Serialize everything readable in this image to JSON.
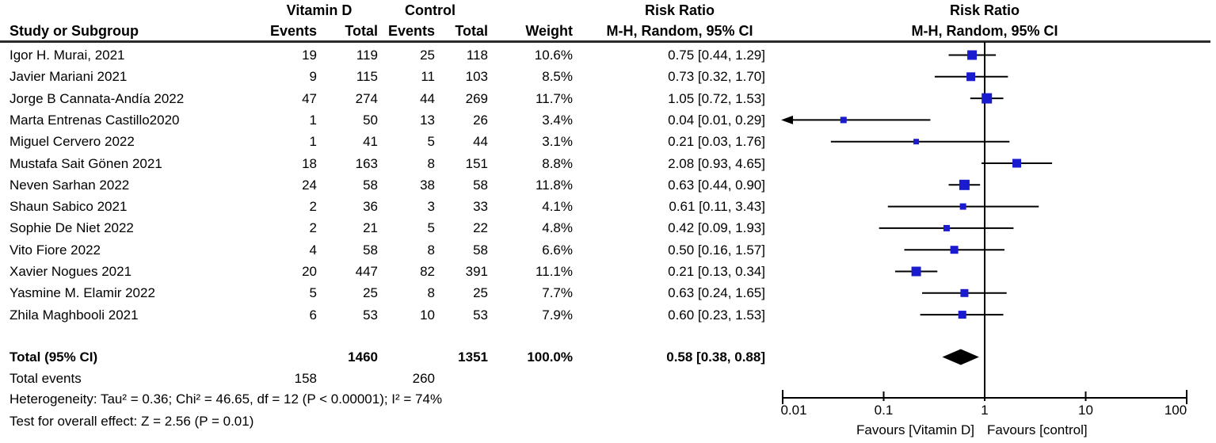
{
  "header": {
    "group1": "Vitamin D",
    "group2": "Control",
    "study_col": "Study or Subgroup",
    "events_col": "Events",
    "total_col": "Total",
    "weight_col": "Weight",
    "risk_ratio": "Risk Ratio",
    "method": "M-H, Random, 95% CI"
  },
  "chart_data": {
    "type": "scatter",
    "subtype": "forest-plot",
    "x_scale": "log",
    "xlim": [
      0.01,
      100
    ],
    "x_ticks": [
      "0.01",
      "0.1",
      "1",
      "10",
      "100"
    ],
    "x_tick_values": [
      0.01,
      0.1,
      1,
      10,
      100
    ],
    "effect_measure": "Risk Ratio",
    "model": "M-H, Random, 95% CI",
    "studies": [
      {
        "name": "Igor H. Murai, 2021",
        "events1": 19,
        "total1": 119,
        "events2": 25,
        "total2": 118,
        "weight": "10.6%",
        "weight_pct": 10.6,
        "rr": 0.75,
        "ci_low": 0.44,
        "ci_high": 1.29,
        "ci_text": "0.75 [0.44, 1.29]",
        "arrow_left": false
      },
      {
        "name": "Javier Mariani 2021",
        "events1": 9,
        "total1": 115,
        "events2": 11,
        "total2": 103,
        "weight": "8.5%",
        "weight_pct": 8.5,
        "rr": 0.73,
        "ci_low": 0.32,
        "ci_high": 1.7,
        "ci_text": "0.73 [0.32, 1.70]",
        "arrow_left": false
      },
      {
        "name": "Jorge B Cannata-Andía 2022",
        "events1": 47,
        "total1": 274,
        "events2": 44,
        "total2": 269,
        "weight": "11.7%",
        "weight_pct": 11.7,
        "rr": 1.05,
        "ci_low": 0.72,
        "ci_high": 1.53,
        "ci_text": "1.05 [0.72, 1.53]",
        "arrow_left": false
      },
      {
        "name": "Marta Entrenas Castillo2020",
        "events1": 1,
        "total1": 50,
        "events2": 13,
        "total2": 26,
        "weight": "3.4%",
        "weight_pct": 3.4,
        "rr": 0.04,
        "ci_low": 0.01,
        "ci_high": 0.29,
        "ci_text": "0.04 [0.01, 0.29]",
        "arrow_left": true
      },
      {
        "name": "Miguel Cervero 2022",
        "events1": 1,
        "total1": 41,
        "events2": 5,
        "total2": 44,
        "weight": "3.1%",
        "weight_pct": 3.1,
        "rr": 0.21,
        "ci_low": 0.03,
        "ci_high": 1.76,
        "ci_text": "0.21 [0.03, 1.76]",
        "arrow_left": false
      },
      {
        "name": "Mustafa Sait Gönen 2021",
        "events1": 18,
        "total1": 163,
        "events2": 8,
        "total2": 151,
        "weight": "8.8%",
        "weight_pct": 8.8,
        "rr": 2.08,
        "ci_low": 0.93,
        "ci_high": 4.65,
        "ci_text": "2.08 [0.93, 4.65]",
        "arrow_left": false
      },
      {
        "name": "Neven Sarhan 2022",
        "events1": 24,
        "total1": 58,
        "events2": 38,
        "total2": 58,
        "weight": "11.8%",
        "weight_pct": 11.8,
        "rr": 0.63,
        "ci_low": 0.44,
        "ci_high": 0.9,
        "ci_text": "0.63 [0.44, 0.90]",
        "arrow_left": false
      },
      {
        "name": "Shaun Sabico  2021",
        "events1": 2,
        "total1": 36,
        "events2": 3,
        "total2": 33,
        "weight": "4.1%",
        "weight_pct": 4.1,
        "rr": 0.61,
        "ci_low": 0.11,
        "ci_high": 3.43,
        "ci_text": "0.61 [0.11, 3.43]",
        "arrow_left": false
      },
      {
        "name": "Sophie De Niet 2022",
        "events1": 2,
        "total1": 21,
        "events2": 5,
        "total2": 22,
        "weight": "4.8%",
        "weight_pct": 4.8,
        "rr": 0.42,
        "ci_low": 0.09,
        "ci_high": 1.93,
        "ci_text": "0.42 [0.09, 1.93]",
        "arrow_left": false
      },
      {
        "name": "Vito Fiore 2022",
        "events1": 4,
        "total1": 58,
        "events2": 8,
        "total2": 58,
        "weight": "6.6%",
        "weight_pct": 6.6,
        "rr": 0.5,
        "ci_low": 0.16,
        "ci_high": 1.57,
        "ci_text": "0.50 [0.16, 1.57]",
        "arrow_left": false
      },
      {
        "name": "Xavier Nogues 2021",
        "events1": 20,
        "total1": 447,
        "events2": 82,
        "total2": 391,
        "weight": "11.1%",
        "weight_pct": 11.1,
        "rr": 0.21,
        "ci_low": 0.13,
        "ci_high": 0.34,
        "ci_text": "0.21 [0.13, 0.34]",
        "arrow_left": false
      },
      {
        "name": "Yasmine M. Elamir 2022",
        "events1": 5,
        "total1": 25,
        "events2": 8,
        "total2": 25,
        "weight": "7.7%",
        "weight_pct": 7.7,
        "rr": 0.63,
        "ci_low": 0.24,
        "ci_high": 1.65,
        "ci_text": "0.63 [0.24, 1.65]",
        "arrow_left": false
      },
      {
        "name": "Zhila Maghbooli 2021",
        "events1": 6,
        "total1": 53,
        "events2": 10,
        "total2": 53,
        "weight": "7.9%",
        "weight_pct": 7.9,
        "rr": 0.6,
        "ci_low": 0.23,
        "ci_high": 1.53,
        "ci_text": "0.60 [0.23, 1.53]",
        "arrow_left": false
      }
    ],
    "total": {
      "label": "Total (95% CI)",
      "total1": 1460,
      "total2": 1351,
      "weight": "100.0%",
      "rr": 0.58,
      "ci_low": 0.38,
      "ci_high": 0.88,
      "ci_text": "0.58 [0.38, 0.88]"
    },
    "total_events": {
      "label": "Total events",
      "events1": 158,
      "events2": 260
    },
    "heterogeneity": "Heterogeneity: Tau² = 0.36; Chi² = 46.65, df = 12 (P < 0.00001); I² = 74%",
    "overall_effect": "Test for overall effect: Z = 2.56 (P = 0.01)",
    "favours_left": "Favours [Vitamin D]",
    "favours_right": "Favours [control]"
  },
  "colors": {
    "marker": "#1A1ACF",
    "diamond": "#000000",
    "line": "#000000",
    "rule": "#2b2b2b"
  }
}
